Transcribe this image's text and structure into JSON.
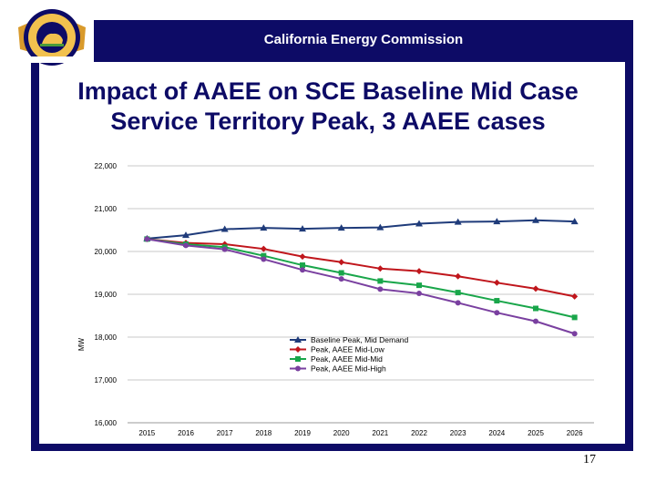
{
  "header": {
    "org_name": "California Energy Commission",
    "logo_text_top": "STATE OF CALIFORNIA",
    "logo_text_bottom": "ENERGY COMMISSION"
  },
  "slide": {
    "title_line1": "Impact of AAEE on SCE Baseline Mid Case",
    "title_line2": "Service Territory Peak, 3 AAEE cases",
    "page_number": "17"
  },
  "colors": {
    "brand_navy": "#0d0b66",
    "gridline": "#c8c8c8"
  },
  "chart_data": {
    "type": "line",
    "title": "",
    "xlabel": "",
    "ylabel": "MW",
    "x": [
      2015,
      2016,
      2017,
      2018,
      2019,
      2020,
      2021,
      2022,
      2023,
      2024,
      2025,
      2026
    ],
    "ylim": [
      16000,
      22000
    ],
    "yticks": [
      16000,
      17000,
      18000,
      19000,
      20000,
      21000,
      22000
    ],
    "ytick_labels": [
      "16,000",
      "17,000",
      "18,000",
      "19,000",
      "20,000",
      "21,000",
      "22,000"
    ],
    "grid": true,
    "legend_position": "center-right",
    "series": [
      {
        "name": "Baseline Peak, Mid Demand",
        "color": "#1f3b7a",
        "marker": "triangle",
        "values": [
          20300,
          20380,
          20520,
          20550,
          20530,
          20550,
          20560,
          20650,
          20690,
          20700,
          20730,
          20700
        ]
      },
      {
        "name": "Peak, AAEE Mid-Low",
        "color": "#c0161c",
        "marker": "diamond",
        "values": [
          20290,
          20200,
          20170,
          20060,
          19880,
          19750,
          19600,
          19540,
          19420,
          19270,
          19130,
          18950
        ]
      },
      {
        "name": "Peak, AAEE Mid-Mid",
        "color": "#19a64a",
        "marker": "square",
        "values": [
          20290,
          20170,
          20100,
          19900,
          19680,
          19500,
          19310,
          19210,
          19040,
          18850,
          18670,
          18460
        ]
      },
      {
        "name": "Peak, AAEE Mid-High",
        "color": "#7a40a0",
        "marker": "circle",
        "values": [
          20290,
          20140,
          20050,
          19820,
          19570,
          19360,
          19120,
          19020,
          18800,
          18570,
          18370,
          18080
        ]
      }
    ]
  }
}
